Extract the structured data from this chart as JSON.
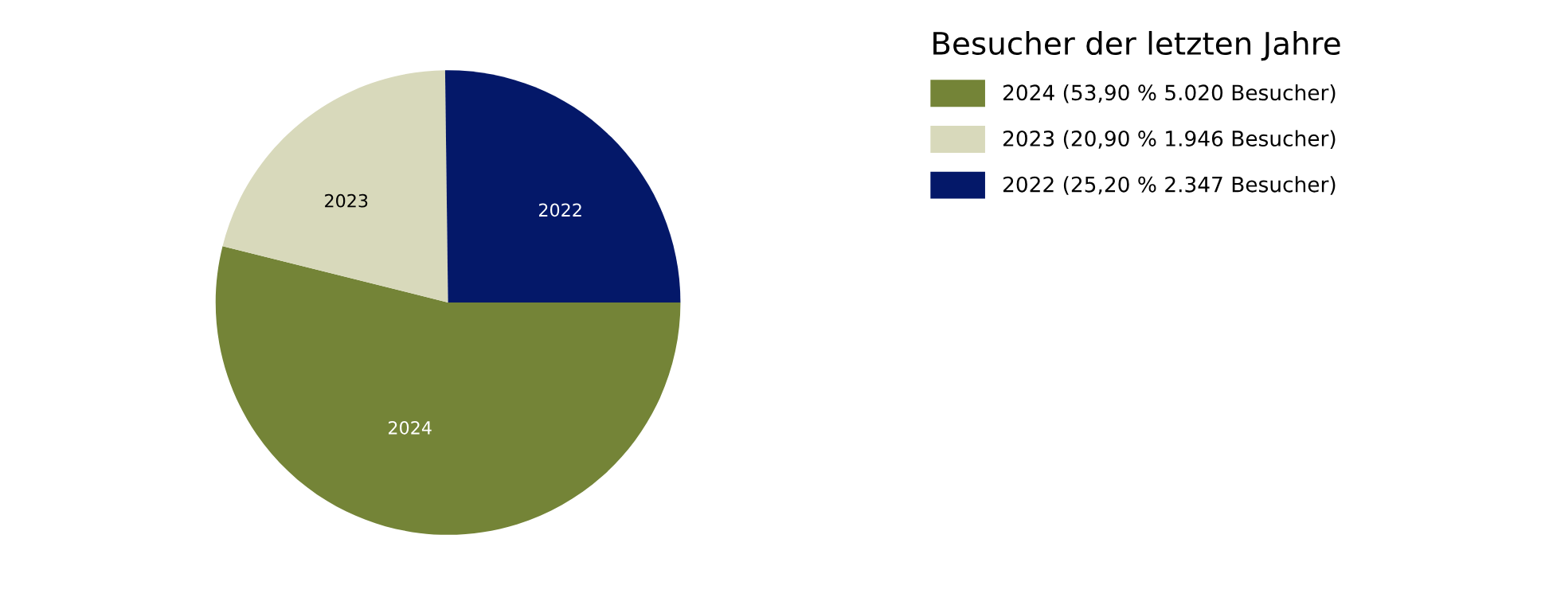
{
  "chart_data": {
    "type": "pie",
    "legend_title": "Besucher der letzten Jahre",
    "categories": [
      "2024 (53,90 % 5.020 Besucher)",
      "2023 (20,90 % 1.946 Besucher)",
      "2022 (25,20 % 2.347 Besucher)"
    ],
    "values": [
      5020,
      1946,
      2347
    ],
    "annotations": [
      "2024",
      "2023",
      "2022"
    ],
    "colors": [
      "#748437",
      "#d8d9bb",
      "#041869"
    ],
    "legend": "right"
  }
}
